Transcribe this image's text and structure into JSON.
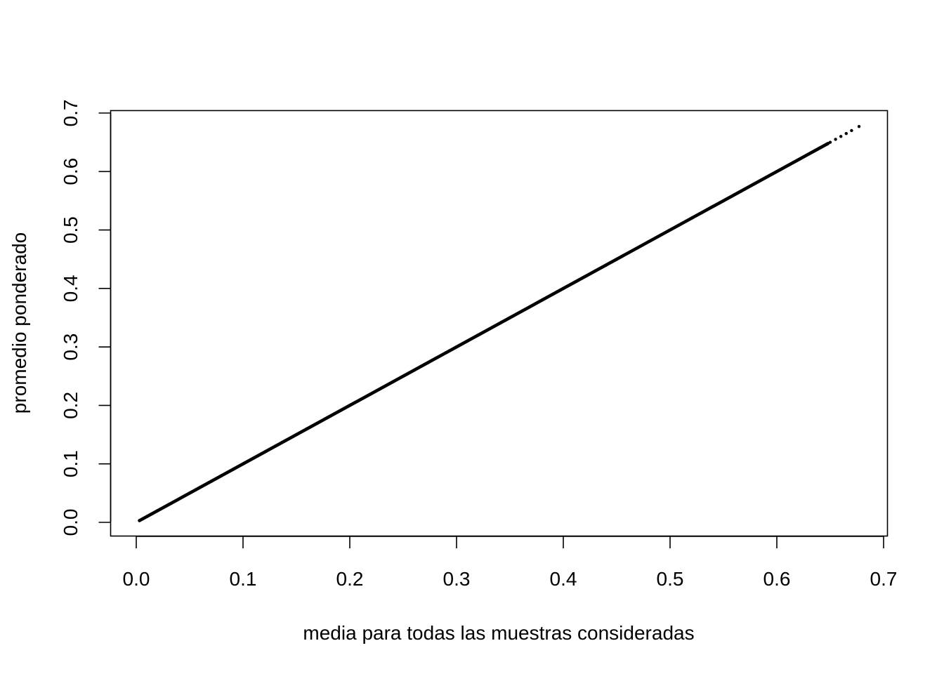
{
  "chart_data": {
    "type": "scatter",
    "title": "",
    "xlabel": "media para todas las muestras consideradas",
    "ylabel": "promedio ponderado",
    "xlim": [
      0.0,
      0.7
    ],
    "ylim": [
      0.0,
      0.7
    ],
    "x_ticks": [
      "0.0",
      "0.1",
      "0.2",
      "0.3",
      "0.4",
      "0.5",
      "0.6",
      "0.7"
    ],
    "y_ticks": [
      "0.0",
      "0.1",
      "0.2",
      "0.3",
      "0.4",
      "0.5",
      "0.6",
      "0.7"
    ],
    "grid": false,
    "point_color": "#000000",
    "relationship": "y ≈ x",
    "x_min": 0.003,
    "x_max": 0.677,
    "series": [
      {
        "x": [
          0.003,
          0.006,
          0.01,
          0.015,
          0.02,
          0.03,
          0.04,
          0.05,
          0.06,
          0.07,
          0.08,
          0.09,
          0.1,
          0.11,
          0.12,
          0.13,
          0.14,
          0.15,
          0.16,
          0.17,
          0.18,
          0.19,
          0.2,
          0.21,
          0.22,
          0.23,
          0.24,
          0.25,
          0.26,
          0.27,
          0.28,
          0.29,
          0.3,
          0.31,
          0.32,
          0.33,
          0.34,
          0.35,
          0.36,
          0.37,
          0.38,
          0.39,
          0.4,
          0.41,
          0.42,
          0.43,
          0.44,
          0.45,
          0.46,
          0.47,
          0.48,
          0.49,
          0.5,
          0.51,
          0.52,
          0.53,
          0.54,
          0.55,
          0.56,
          0.57,
          0.58,
          0.59,
          0.6,
          0.61,
          0.62,
          0.63,
          0.64,
          0.65,
          0.655,
          0.66,
          0.665,
          0.67,
          0.677
        ],
        "y": [
          0.003,
          0.006,
          0.01,
          0.015,
          0.02,
          0.03,
          0.04,
          0.05,
          0.06,
          0.07,
          0.08,
          0.09,
          0.1,
          0.11,
          0.12,
          0.13,
          0.14,
          0.15,
          0.16,
          0.17,
          0.18,
          0.19,
          0.2,
          0.21,
          0.22,
          0.23,
          0.24,
          0.25,
          0.26,
          0.27,
          0.28,
          0.29,
          0.3,
          0.31,
          0.32,
          0.33,
          0.34,
          0.35,
          0.36,
          0.37,
          0.38,
          0.39,
          0.4,
          0.41,
          0.42,
          0.43,
          0.44,
          0.45,
          0.46,
          0.47,
          0.48,
          0.49,
          0.5,
          0.51,
          0.52,
          0.53,
          0.54,
          0.55,
          0.56,
          0.57,
          0.58,
          0.59,
          0.6,
          0.61,
          0.62,
          0.63,
          0.64,
          0.65,
          0.655,
          0.66,
          0.665,
          0.67,
          0.677
        ]
      }
    ]
  }
}
